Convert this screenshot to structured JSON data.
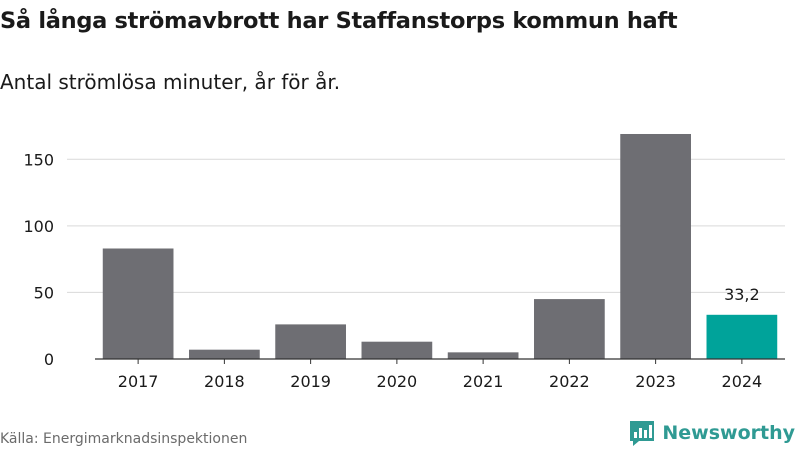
{
  "header": {
    "title": "Så långa strömavbrott har Staffanstorps kommun haft",
    "subtitle": "Antal strömlösa minuter, år för år."
  },
  "footer": {
    "source": "Källa: Energimarknadsinspektionen",
    "logo_text": "Newsworthy"
  },
  "colors": {
    "bar": "#6e6e73",
    "highlight": "#00a39a",
    "grid": "#d9d9d9",
    "axis": "#333333",
    "logo": "#2f9a93"
  },
  "chart_data": {
    "type": "bar",
    "title": "Så långa strömavbrott har Staffanstorps kommun haft",
    "subtitle": "Antal strömlösa minuter, år för år.",
    "categories": [
      "2017",
      "2018",
      "2019",
      "2020",
      "2021",
      "2022",
      "2023",
      "2024"
    ],
    "values": [
      83,
      7,
      26,
      13,
      5,
      45,
      169,
      33.2
    ],
    "highlight_index": 7,
    "data_labels": [
      {
        "index": 7,
        "text": "33,2"
      }
    ],
    "yticks": [
      0,
      50,
      100,
      150
    ],
    "ylim": [
      0,
      175
    ],
    "grid": true,
    "xlabel": "",
    "ylabel": ""
  }
}
